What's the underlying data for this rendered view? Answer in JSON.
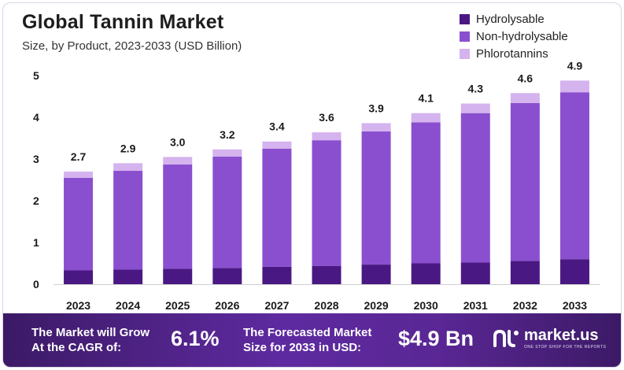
{
  "colors": {
    "hydrolysable": "#4a1883",
    "non_hydrolysable": "#8a4fcf",
    "phlorotannins": "#d4b3ee",
    "footer": "#5e2aa0"
  },
  "chart_data": {
    "type": "bar",
    "stacked": true,
    "title": "Global Tannin Market",
    "subtitle": "Size, by Product, 2023-2033 (USD Billion)",
    "categories": [
      "2023",
      "2024",
      "2025",
      "2026",
      "2027",
      "2028",
      "2029",
      "2030",
      "2031",
      "2032",
      "2033"
    ],
    "series": [
      {
        "name": "Hydrolysable",
        "values": [
          0.33,
          0.35,
          0.37,
          0.39,
          0.42,
          0.44,
          0.47,
          0.5,
          0.52,
          0.56,
          0.6
        ]
      },
      {
        "name": "Non-hydrolysable",
        "values": [
          2.22,
          2.37,
          2.5,
          2.67,
          2.83,
          3.01,
          3.19,
          3.38,
          3.58,
          3.78,
          4.0
        ]
      },
      {
        "name": "Phlorotannins",
        "values": [
          0.15,
          0.18,
          0.18,
          0.17,
          0.17,
          0.19,
          0.2,
          0.22,
          0.23,
          0.24,
          0.28
        ]
      }
    ],
    "totals": [
      "2.7",
      "2.9",
      "3.0",
      "3.2",
      "3.4",
      "3.6",
      "3.9",
      "4.1",
      "4.3",
      "4.6",
      "4.9"
    ],
    "y_ticks": [
      "0",
      "1",
      "2",
      "3",
      "4",
      "5"
    ],
    "ylim": [
      0,
      5
    ],
    "xlabel": "",
    "ylabel": "",
    "legend": "top-right"
  },
  "footer": {
    "cagr_label_line1": "The Market will Grow",
    "cagr_label_line2": "At the CAGR of:",
    "cagr_value": "6.1%",
    "forecast_label_line1": "The Forecasted Market",
    "forecast_label_line2": "Size for 2033 in USD:",
    "forecast_value": "$4.9 Bn",
    "brand_name": "market.us",
    "brand_tagline": "ONE STOP SHOP FOR THE REPORTS"
  }
}
